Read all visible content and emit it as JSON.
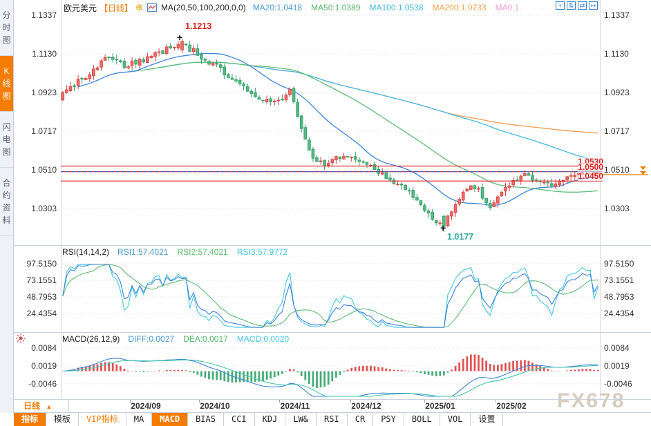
{
  "header": {
    "symbol": "欧元美元",
    "period": "【日线】",
    "ma_title": "MA(20,50,100,200,0,0)",
    "ma_values": [
      {
        "label": "MA20:1.0418",
        "color": "#4a9bd8"
      },
      {
        "label": "MA50:1.0389",
        "color": "#55bb6a"
      },
      {
        "label": "MA100:1.0538",
        "color": "#45b8e8"
      },
      {
        "label": "MA200:1.0733",
        "color": "#f5a04a"
      },
      {
        "label": "MA0:1.",
        "color": "#ef9fd0"
      }
    ],
    "tool_icons": [
      {
        "name": "crosshair-icon",
        "glyph": "+"
      },
      {
        "name": "y-axis-scale-icon",
        "glyph": "⇅"
      },
      {
        "name": "x-axis-scale-icon",
        "glyph": "⇄"
      },
      {
        "name": "pan-right-icon",
        "glyph": "↦"
      }
    ]
  },
  "icons": {
    "plus_circle": "⊕",
    "period_triangle": "▲"
  },
  "sidebar": {
    "items": [
      {
        "label": "分时图",
        "active": false
      },
      {
        "label": "K线图",
        "active": true
      },
      {
        "label": "闪电图",
        "active": false
      },
      {
        "label": "合约资料",
        "active": false
      }
    ]
  },
  "main_chart": {
    "y_labels": [
      "1.1337",
      "1.1130",
      "1.0923",
      "1.0717",
      "1.0510",
      "1.0303"
    ],
    "annotations": {
      "high": "1.1213",
      "low": "1.0177"
    },
    "levels": [
      {
        "label": "1.0530"
      },
      {
        "label": "1.0500"
      },
      {
        "label": "1.0450"
      }
    ]
  },
  "rsi": {
    "title": "RSI(14,14,2)",
    "values": [
      {
        "label": "RSI1:57.4021",
        "color": "#4a9bd8"
      },
      {
        "label": "RSI2:57.4021",
        "color": "#55bb6a"
      },
      {
        "label": "RSI3:57.9772",
        "color": "#45c5e5"
      }
    ],
    "y_labels": [
      "97.5150",
      "73.1551",
      "48.7953",
      "24.4354"
    ]
  },
  "macd": {
    "title": "MACD(26,12,9)",
    "values": [
      {
        "label": "DIFF:0.0027",
        "color": "#4a9bd8"
      },
      {
        "label": "DEA:0.0017",
        "color": "#55bb6a"
      },
      {
        "label": "MACD:0.0020",
        "color": "#45c5e5"
      }
    ],
    "y_labels": [
      "0.0084",
      "0.0019",
      "-0.0046"
    ]
  },
  "xaxis": {
    "period_label": "日线",
    "months": [
      "2024/09",
      "2024/10",
      "2024/11",
      "2024/12",
      "2025/01",
      "2025/02"
    ]
  },
  "toolbar": {
    "tabs": [
      {
        "label": "指标",
        "style": "active"
      },
      {
        "label": "模板",
        "style": ""
      },
      {
        "label": "VIP指标",
        "style": "orange"
      },
      {
        "label": "MA",
        "style": ""
      },
      {
        "label": "MACD",
        "style": "active"
      },
      {
        "label": "BIAS",
        "style": ""
      },
      {
        "label": "CCI",
        "style": ""
      },
      {
        "label": "KDJ",
        "style": ""
      },
      {
        "label": "LW&",
        "style": ""
      },
      {
        "label": "RSI",
        "style": ""
      },
      {
        "label": "CR",
        "style": ""
      },
      {
        "label": "PSY",
        "style": ""
      },
      {
        "label": "BOLL",
        "style": ""
      },
      {
        "label": "VOL",
        "style": ""
      },
      {
        "label": "设置",
        "style": ""
      }
    ]
  },
  "watermark": "FX678",
  "chart_data": {
    "type": "candlestick",
    "symbol_display": "欧元美元 日线 (EUR/USD daily)",
    "candle_count": 140,
    "price_axis": {
      "labels": [
        1.1337,
        1.113,
        1.0923,
        1.0717,
        1.051,
        1.0303
      ]
    },
    "price_anchors": [
      [
        0.0,
        1.092
      ],
      [
        0.04,
        1.1005
      ],
      [
        0.085,
        1.1125
      ],
      [
        0.115,
        1.107
      ],
      [
        0.15,
        1.11
      ],
      [
        0.19,
        1.115
      ],
      [
        0.2225,
        1.1185
      ],
      [
        0.255,
        1.1125
      ],
      [
        0.3,
        1.1035
      ],
      [
        0.34,
        1.0955
      ],
      [
        0.375,
        1.0885
      ],
      [
        0.405,
        1.0875
      ],
      [
        0.425,
        1.093
      ],
      [
        0.445,
        1.0745
      ],
      [
        0.465,
        1.058
      ],
      [
        0.49,
        1.0545
      ],
      [
        0.52,
        1.0585
      ],
      [
        0.55,
        1.0555
      ],
      [
        0.575,
        1.0525
      ],
      [
        0.6,
        1.048
      ],
      [
        0.625,
        1.0425
      ],
      [
        0.65,
        1.0395
      ],
      [
        0.675,
        1.0295
      ],
      [
        0.695,
        1.0245
      ],
      [
        0.712,
        1.0215
      ],
      [
        0.73,
        1.032
      ],
      [
        0.755,
        1.0405
      ],
      [
        0.775,
        1.0425
      ],
      [
        0.795,
        1.0305
      ],
      [
        0.815,
        1.038
      ],
      [
        0.84,
        1.0455
      ],
      [
        0.865,
        1.049
      ],
      [
        0.89,
        1.0445
      ],
      [
        0.915,
        1.0435
      ],
      [
        0.94,
        1.0475
      ],
      [
        0.97,
        1.049
      ],
      [
        1.0,
        1.05
      ]
    ],
    "events": {
      "peak_t": 0.2225,
      "peak_high": 1.1213,
      "trough_t": 0.712,
      "trough_low": 1.0177,
      "last_close": 1.05
    },
    "levels": [
      1.053,
      1.05,
      1.045
    ],
    "dashed_price": 1.05,
    "marker_price": 1.0495,
    "ma_windows": [
      20,
      50,
      100,
      200
    ],
    "rsi_axis": [
      97.515,
      73.1551,
      48.7953,
      24.4354
    ],
    "macd_axis": [
      0.0084,
      0.0019,
      -0.0046
    ],
    "colors": {
      "up": "#ef6a66",
      "up_stroke": "#cf4341",
      "down": "#55b984",
      "down_stroke": "#329c66",
      "ma20": "#3d85d8",
      "ma50": "#5fbb76",
      "ma100": "#45b8e8",
      "ma200": "#f29b4a",
      "level": "#e02a2a",
      "dashed": "#3b5fd0",
      "grid": "#dadfe5",
      "hist_pos": "#e05555",
      "hist_neg": "#48ab78",
      "rsi1": "#3d85d8",
      "rsi2": "#5fbb76",
      "rsi3": "#45c5e5",
      "diff": "#3d85d8",
      "dea": "#45c5b0",
      "marker": "#f57c00"
    }
  }
}
